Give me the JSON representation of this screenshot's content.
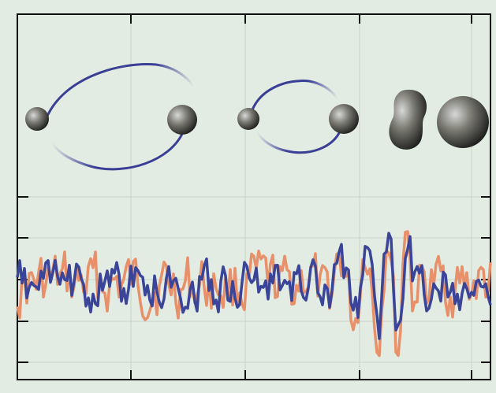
{
  "figure": {
    "colors": {
      "background": "#e3ece3",
      "frame": "#111111",
      "grid": "#c9d2c9",
      "orbit": "#3a3f96",
      "signal_a": "#e8906a",
      "signal_b": "#3a4599",
      "body_dark": "#2b2b2b",
      "body_light": "#d8d8d8"
    },
    "stages": [
      {
        "name": "inspiral-wide",
        "bodies": 2,
        "orbit": "large"
      },
      {
        "name": "inspiral-close",
        "bodies": 2,
        "orbit": "small"
      },
      {
        "name": "merger",
        "bodies": 1,
        "shape": "peanut"
      },
      {
        "name": "ringdown",
        "bodies": 1,
        "shape": "sphere"
      }
    ],
    "series": [
      {
        "key": "signal_a",
        "color": "#e8906a"
      },
      {
        "key": "signal_b",
        "color": "#3a4599"
      }
    ]
  }
}
